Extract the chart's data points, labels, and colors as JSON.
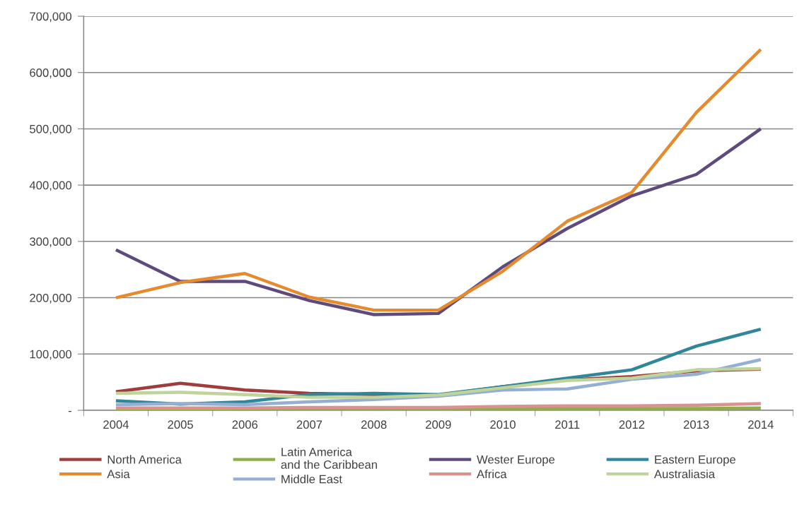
{
  "chart_data": {
    "type": "line",
    "categories": [
      "2004",
      "2005",
      "2006",
      "2007",
      "2008",
      "2009",
      "2010",
      "2011",
      "2012",
      "2013",
      "2014"
    ],
    "series": [
      {
        "name": "North America",
        "color": "#a03c3c",
        "values": [
          33000,
          48000,
          36000,
          30000,
          28000,
          27000,
          42000,
          54000,
          60000,
          70000,
          73000
        ]
      },
      {
        "name": "Latin America\nand the Caribbean",
        "color": "#8fae4a",
        "values": [
          2000,
          2000,
          3000,
          3000,
          3000,
          3000,
          3000,
          3000,
          3000,
          3000,
          4000
        ]
      },
      {
        "name": "Wester Europe",
        "color": "#5f4a7e",
        "values": [
          285000,
          229000,
          229000,
          195000,
          170000,
          172000,
          255000,
          323000,
          381000,
          419000,
          500000
        ]
      },
      {
        "name": "Eastern Europe",
        "color": "#31879a",
        "values": [
          17000,
          11000,
          15000,
          28000,
          30000,
          28000,
          42000,
          57000,
          72000,
          114000,
          144000
        ]
      },
      {
        "name": "Asia",
        "color": "#e58a2d",
        "values": [
          200000,
          227000,
          243000,
          201000,
          178000,
          178000,
          247000,
          336000,
          387000,
          529000,
          641000
        ]
      },
      {
        "name": "Middle East",
        "color": "#94afd3",
        "values": [
          10000,
          12000,
          10000,
          15000,
          19000,
          25000,
          36000,
          38000,
          55000,
          64000,
          90000
        ]
      },
      {
        "name": "Africa",
        "color": "#d9928f",
        "values": [
          4000,
          4000,
          4000,
          5000,
          5000,
          5000,
          7000,
          8000,
          8000,
          9000,
          12000
        ]
      },
      {
        "name": "Australiasia",
        "color": "#bfd49a",
        "values": [
          30000,
          32000,
          28000,
          23000,
          23000,
          27000,
          40000,
          53000,
          57000,
          72000,
          74000
        ]
      }
    ],
    "ylim": [
      0,
      700000
    ],
    "yticks": [
      {
        "value": 0,
        "label": "-"
      },
      {
        "value": 100000,
        "label": "100,000"
      },
      {
        "value": 200000,
        "label": "200,000"
      },
      {
        "value": 300000,
        "label": "300,000"
      },
      {
        "value": 400000,
        "label": "400,000"
      },
      {
        "value": 500000,
        "label": "500,000"
      },
      {
        "value": 600000,
        "label": "600,000"
      },
      {
        "value": 700000,
        "label": "700,000"
      }
    ],
    "grid": "y",
    "legend": "bottom",
    "marker": "none",
    "line_style": "solid"
  }
}
